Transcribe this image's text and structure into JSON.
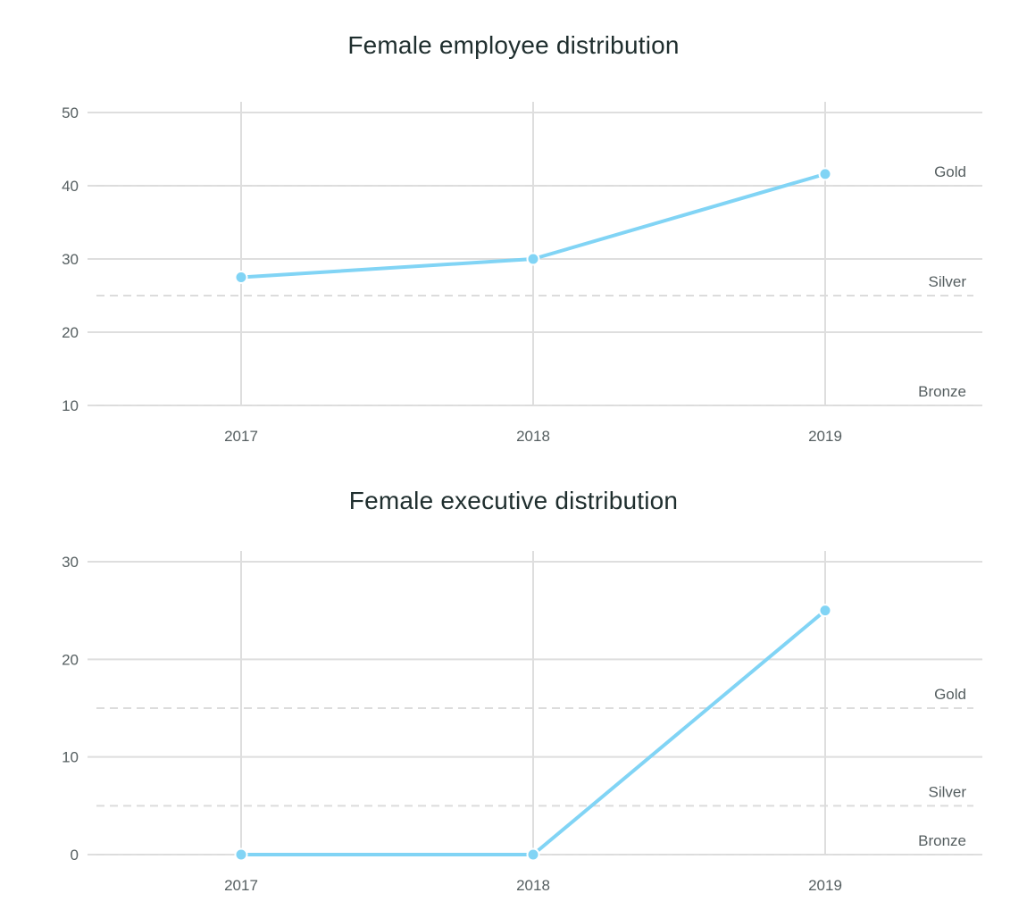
{
  "chart_data": [
    {
      "type": "line",
      "title": "Female employee distribution",
      "x": [
        "2017",
        "2018",
        "2019"
      ],
      "series": [
        {
          "values": [
            27.5,
            30,
            41.6
          ],
          "color": "#81d4f5"
        }
      ],
      "ylim": [
        10,
        50
      ],
      "yticks": [
        10,
        20,
        30,
        40,
        50
      ],
      "reference_lines": [
        {
          "label": "Gold",
          "value": 40
        },
        {
          "label": "Silver",
          "value": 25
        },
        {
          "label": "Bronze",
          "value": 10
        }
      ],
      "grid": true
    },
    {
      "type": "line",
      "title": "Female executive distribution",
      "x": [
        "2017",
        "2018",
        "2019"
      ],
      "series": [
        {
          "values": [
            0,
            0,
            25
          ],
          "color": "#81d4f5"
        }
      ],
      "ylim": [
        0,
        30
      ],
      "yticks": [
        0,
        10,
        20,
        30
      ],
      "reference_lines": [
        {
          "label": "Gold",
          "value": 15
        },
        {
          "label": "Silver",
          "value": 5
        },
        {
          "label": "Bronze",
          "value": 0
        }
      ],
      "grid": true
    }
  ],
  "colors": {
    "grid": "#dedede",
    "reference": "#dcdcdc",
    "text": "#555e60",
    "title": "#1f2e2e",
    "line": "#81d4f5"
  }
}
